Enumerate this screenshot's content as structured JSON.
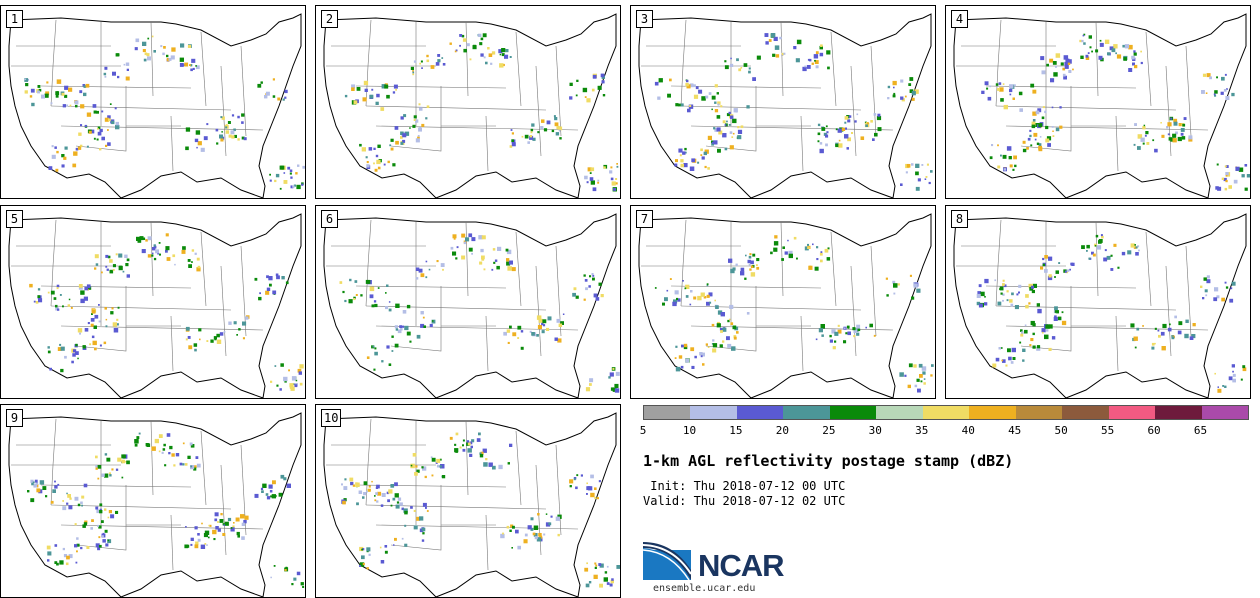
{
  "panels": [
    {
      "label": "1"
    },
    {
      "label": "2"
    },
    {
      "label": "3"
    },
    {
      "label": "4"
    },
    {
      "label": "5"
    },
    {
      "label": "6"
    },
    {
      "label": "7"
    },
    {
      "label": "8"
    },
    {
      "label": "9"
    },
    {
      "label": "10"
    }
  ],
  "colorbar": {
    "colors": [
      "#a0a0a0",
      "#b4bee6",
      "#5a5ad2",
      "#4c9698",
      "#0a8a0a",
      "#b8d8b8",
      "#f0dc64",
      "#eeb020",
      "#b98a3a",
      "#8c5a3c",
      "#f25a82",
      "#6e1a3c",
      "#aa4aaa"
    ],
    "ticks": [
      "5",
      "10",
      "15",
      "20",
      "25",
      "30",
      "35",
      "40",
      "45",
      "50",
      "55",
      "60",
      "65"
    ]
  },
  "title": "1-km AGL reflectivity postage stamp (dBZ)",
  "init_text": " Init: Thu 2018-07-12 00 UTC",
  "valid_text": "Valid: Thu 2018-07-12 02 UTC",
  "logo": {
    "name": "NCAR",
    "url": "ensemble.ucar.edu"
  }
}
